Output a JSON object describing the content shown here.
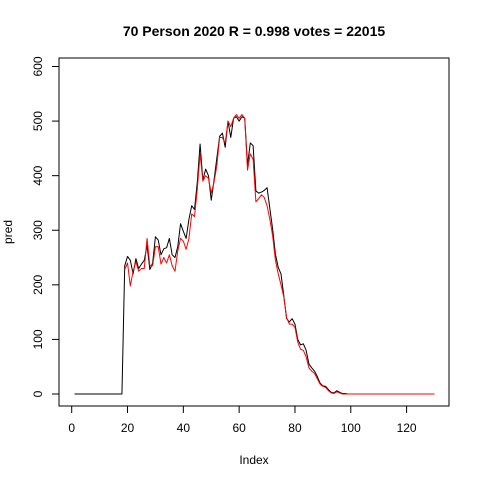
{
  "chart_data": {
    "type": "line",
    "title": "70 Person 2020 R = 0.998 votes = 22015",
    "xlabel": "Index",
    "ylabel": "pred",
    "xlim": [
      1,
      130
    ],
    "ylim": [
      0,
      600
    ],
    "xticks": [
      0,
      20,
      40,
      60,
      80,
      100,
      120
    ],
    "yticks": [
      0,
      100,
      200,
      300,
      400,
      500,
      600
    ],
    "grid": false,
    "legend": "none",
    "series": [
      {
        "color": "#000000",
        "x": [
          1,
          2,
          3,
          4,
          5,
          6,
          7,
          8,
          9,
          10,
          11,
          12,
          13,
          14,
          15,
          16,
          17,
          18,
          19,
          20,
          21,
          22,
          23,
          24,
          25,
          26,
          27,
          28,
          29,
          30,
          31,
          32,
          33,
          34,
          35,
          36,
          37,
          38,
          39,
          40,
          41,
          42,
          43,
          44,
          45,
          46,
          47,
          48,
          49,
          50,
          51,
          52,
          53,
          54,
          55,
          56,
          57,
          58,
          59,
          60,
          61,
          62,
          63,
          64,
          65,
          66,
          67,
          68,
          69,
          70,
          71,
          72,
          73,
          74,
          75,
          76,
          77,
          78,
          79,
          80,
          81,
          82,
          83,
          84,
          85,
          86,
          87,
          88,
          89,
          90,
          91,
          92,
          93,
          94,
          95,
          96,
          97,
          98,
          99,
          100,
          101,
          102,
          103,
          104,
          105,
          106,
          107,
          108,
          109,
          110,
          111,
          112,
          113,
          114,
          115,
          116,
          117,
          118,
          119,
          120,
          121,
          122,
          123,
          124,
          125,
          126,
          127,
          128,
          129,
          130
        ],
        "y": [
          0,
          0,
          0,
          0,
          0,
          0,
          0,
          0,
          0,
          0,
          0,
          0,
          0,
          0,
          0,
          0,
          0,
          0,
          235,
          252,
          245,
          220,
          248,
          230,
          238,
          245,
          272,
          228,
          240,
          288,
          282,
          255,
          266,
          268,
          285,
          255,
          250,
          270,
          312,
          298,
          285,
          320,
          345,
          338,
          388,
          458,
          392,
          412,
          400,
          355,
          392,
          432,
          472,
          478,
          452,
          500,
          470,
          505,
          508,
          500,
          508,
          505,
          420,
          460,
          455,
          372,
          368,
          370,
          373,
          378,
          340,
          302,
          256,
          232,
          220,
          180,
          138,
          132,
          138,
          128,
          100,
          90,
          92,
          80,
          55,
          48,
          42,
          32,
          20,
          15,
          14,
          8,
          3,
          2,
          6,
          3,
          1,
          1,
          0,
          0,
          0,
          0,
          0,
          0,
          0,
          0,
          0,
          0,
          0,
          0,
          0,
          0,
          0,
          0,
          0,
          0,
          0,
          0,
          0,
          0,
          0,
          0,
          0,
          0,
          0,
          0,
          0,
          0,
          0,
          0
        ]
      },
      {
        "color": "#ff0000",
        "x": [
          19,
          20,
          21,
          22,
          23,
          24,
          25,
          26,
          27,
          28,
          29,
          30,
          31,
          32,
          33,
          34,
          35,
          36,
          37,
          38,
          39,
          40,
          41,
          42,
          43,
          44,
          45,
          46,
          47,
          48,
          49,
          50,
          51,
          52,
          53,
          54,
          55,
          56,
          57,
          58,
          59,
          60,
          61,
          62,
          63,
          64,
          65,
          66,
          67,
          68,
          69,
          70,
          71,
          72,
          73,
          74,
          75,
          76,
          77,
          78,
          79,
          80,
          81,
          82,
          83,
          84,
          85,
          86,
          87,
          88,
          89,
          90,
          91,
          92,
          93,
          94,
          95,
          96,
          97,
          98,
          99,
          100,
          101,
          102,
          103,
          104,
          105,
          106,
          107,
          108,
          109,
          110,
          111,
          112,
          113,
          114,
          115,
          116,
          117,
          118,
          119,
          120,
          121,
          122,
          123,
          124,
          125,
          126,
          127,
          128,
          129,
          130
        ],
        "y": [
          228,
          240,
          198,
          225,
          242,
          225,
          230,
          230,
          285,
          235,
          235,
          270,
          270,
          238,
          250,
          240,
          255,
          235,
          225,
          262,
          285,
          280,
          265,
          285,
          330,
          325,
          375,
          440,
          390,
          400,
          395,
          368,
          388,
          418,
          470,
          470,
          460,
          500,
          490,
          505,
          512,
          505,
          512,
          505,
          410,
          440,
          430,
          352,
          358,
          365,
          360,
          345,
          320,
          290,
          245,
          220,
          200,
          178,
          140,
          128,
          128,
          122,
          95,
          82,
          80,
          68,
          48,
          42,
          38,
          28,
          18,
          14,
          12,
          6,
          2,
          1,
          4,
          2,
          0,
          0,
          0,
          0,
          0,
          0,
          0,
          0,
          0,
          0,
          0,
          0,
          0,
          0,
          0,
          0,
          0,
          0,
          0,
          0,
          0,
          0,
          0,
          0,
          0,
          0,
          0,
          0,
          0,
          0,
          0,
          0,
          0,
          0
        ]
      }
    ]
  }
}
